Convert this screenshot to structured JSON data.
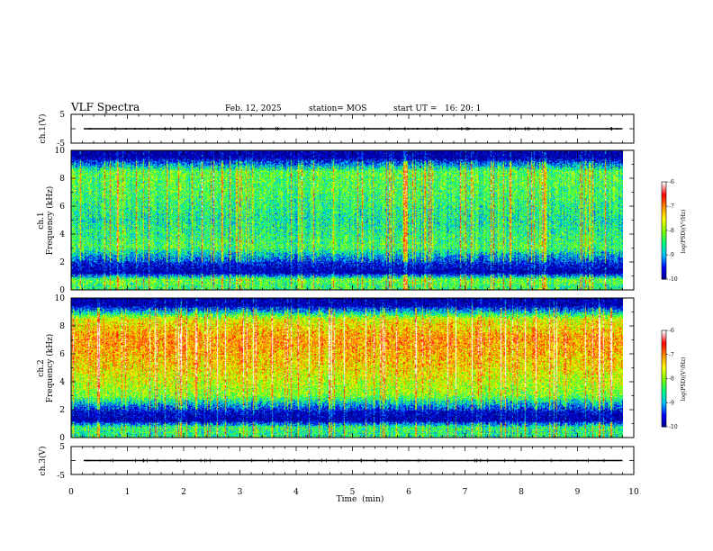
{
  "header": {
    "title": "VLF Spectra",
    "date": "Feb. 12, 2025",
    "station": "station= MOS",
    "start_ut": "start UT =   16: 20: 1"
  },
  "chart_data": [
    {
      "name": "ch1-waveform",
      "type": "line",
      "ylabel": "ch.1(V)",
      "ylim": [
        -5,
        5
      ],
      "yticks": [
        "5",
        "-5"
      ],
      "xlim": [
        0,
        10
      ],
      "baseline_value": 0,
      "data_end_min": 9.8
    },
    {
      "name": "ch1-spectrogram",
      "type": "heatmap",
      "ylabel_line1": "ch.1",
      "ylabel_line2": "Frequency (kHz)",
      "ylim": [
        0,
        10
      ],
      "yticks": [
        "0",
        "2",
        "4",
        "6",
        "8",
        "10"
      ],
      "xlim": [
        0,
        10
      ],
      "data_end_min": 9.8,
      "colorbar": {
        "label": "log(PSD)(V²/Hz)",
        "range": [
          -10,
          -6
        ],
        "ticks": [
          "-6",
          "-7",
          "-8",
          "-9",
          "-10"
        ]
      },
      "mean_level_by_kHz": [
        {
          "f": 0.2,
          "v": -8.4
        },
        {
          "f": 0.7,
          "v": -8.1
        },
        {
          "f": 1.2,
          "v": -10
        },
        {
          "f": 1.8,
          "v": -9.7
        },
        {
          "f": 3,
          "v": -8.3
        },
        {
          "f": 5,
          "v": -8.6
        },
        {
          "f": 7,
          "v": -8.3
        },
        {
          "f": 8.5,
          "v": -8.2
        },
        {
          "f": 9.5,
          "v": -10
        }
      ]
    },
    {
      "name": "ch2-spectrogram",
      "type": "heatmap",
      "ylabel_line1": "ch.2",
      "ylabel_line2": "Frequency (kHz)",
      "ylim": [
        0,
        10
      ],
      "yticks": [
        "0",
        "2",
        "4",
        "6",
        "8",
        "10"
      ],
      "xlim": [
        0,
        10
      ],
      "data_end_min": 9.8,
      "colorbar": {
        "label": "log(PSD)(V²/Hz)",
        "range": [
          -10,
          -6
        ],
        "ticks": [
          "-6",
          "-7",
          "-8",
          "-9",
          "-10"
        ]
      },
      "mean_level_by_kHz": [
        {
          "f": 0.2,
          "v": -8.5
        },
        {
          "f": 0.7,
          "v": -8.4
        },
        {
          "f": 1.2,
          "v": -10
        },
        {
          "f": 1.8,
          "v": -9.8
        },
        {
          "f": 3,
          "v": -8.0
        },
        {
          "f": 5,
          "v": -7.4
        },
        {
          "f": 7,
          "v": -7.0
        },
        {
          "f": 8.5,
          "v": -7.6
        },
        {
          "f": 9.5,
          "v": -10
        }
      ]
    },
    {
      "name": "ch3-waveform",
      "type": "line",
      "ylabel": "ch.3(V)",
      "ylim": [
        -5,
        5
      ],
      "yticks": [
        "5",
        "-5"
      ],
      "xlim": [
        0,
        10
      ],
      "baseline_value": 0,
      "data_end_min": 9.8
    }
  ],
  "xaxis": {
    "label": "Time  (min)",
    "ticks": [
      "0",
      "1",
      "2",
      "3",
      "4",
      "5",
      "6",
      "7",
      "8",
      "9",
      "10"
    ]
  },
  "colormap": [
    "#00008b",
    "#0000ff",
    "#00bfff",
    "#00ff7f",
    "#7fff00",
    "#ffff00",
    "#ff8c00",
    "#ff0000",
    "#ffffff"
  ]
}
